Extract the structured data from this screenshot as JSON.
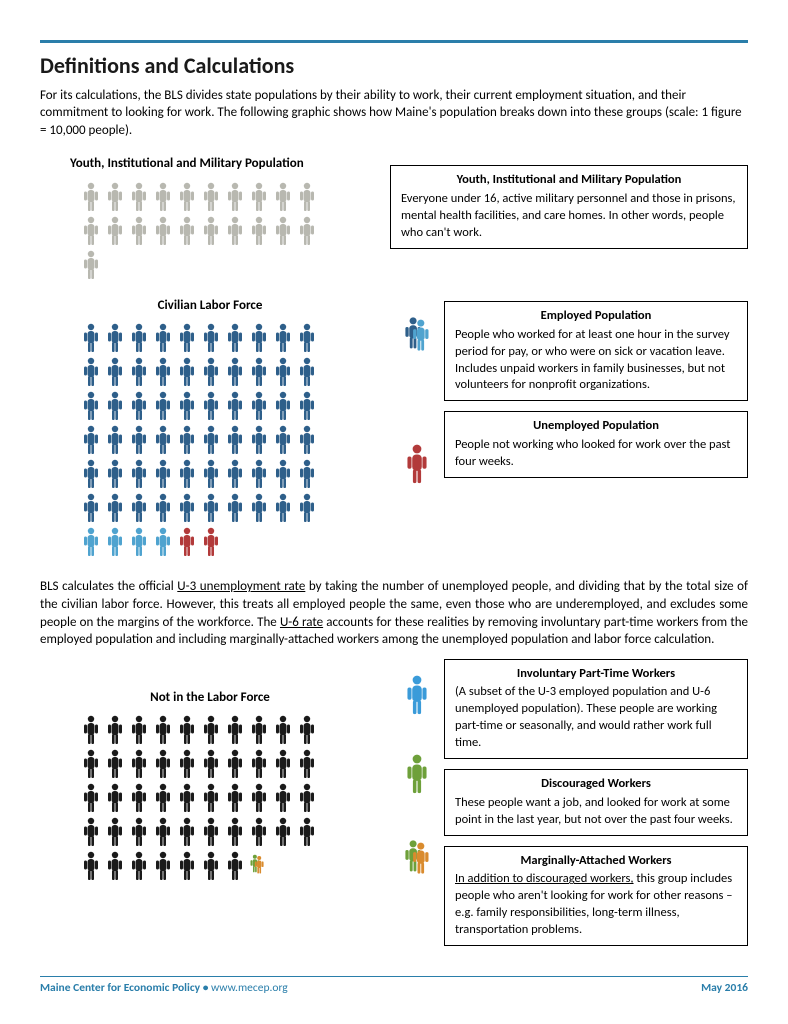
{
  "heading": "Definitions and Calculations",
  "intro": "For its calculations, the BLS divides state populations by their ability to work, their current employment situation, and their commitment to looking for work. The following graphic shows how Maine's population breaks down into these groups (scale: 1 figure = 10,000 people).",
  "colors": {
    "rule": "#2a7eaa",
    "gray": "#b8b8b0",
    "darkblue": "#2e5f8a",
    "lightblue": "#4fa3cf",
    "red": "#b23a3a",
    "brightblue": "#3a9bd9",
    "green": "#6ea03a",
    "orange": "#d98b2e",
    "black": "#1a1a1a",
    "footer": "#2a7eaa"
  },
  "section1": {
    "title": "Youth, Institutional and Military Population",
    "rows": [
      [
        "gray",
        "gray",
        "gray",
        "gray",
        "gray",
        "gray",
        "gray",
        "gray",
        "gray",
        "gray"
      ],
      [
        "gray",
        "gray",
        "gray",
        "gray",
        "gray",
        "gray",
        "gray",
        "gray",
        "gray",
        "gray"
      ],
      [
        "gray"
      ]
    ],
    "box": {
      "title": "Youth, Institutional and Military Population",
      "body": "Everyone under 16, active military personnel and those in prisons, mental health facilities, and care homes. In other words, people who can't work."
    }
  },
  "section2": {
    "title": "Civilian Labor Force",
    "rows": [
      [
        "darkblue",
        "darkblue",
        "darkblue",
        "darkblue",
        "darkblue",
        "darkblue",
        "darkblue",
        "darkblue",
        "darkblue",
        "darkblue"
      ],
      [
        "darkblue",
        "darkblue",
        "darkblue",
        "darkblue",
        "darkblue",
        "darkblue",
        "darkblue",
        "darkblue",
        "darkblue",
        "darkblue"
      ],
      [
        "darkblue",
        "darkblue",
        "darkblue",
        "darkblue",
        "darkblue",
        "darkblue",
        "darkblue",
        "darkblue",
        "darkblue",
        "darkblue"
      ],
      [
        "darkblue",
        "darkblue",
        "darkblue",
        "darkblue",
        "darkblue",
        "darkblue",
        "darkblue",
        "darkblue",
        "darkblue",
        "darkblue"
      ],
      [
        "darkblue",
        "darkblue",
        "darkblue",
        "darkblue",
        "darkblue",
        "darkblue",
        "darkblue",
        "darkblue",
        "darkblue",
        "darkblue"
      ],
      [
        "darkblue",
        "darkblue",
        "darkblue",
        "darkblue",
        "darkblue",
        "darkblue",
        "darkblue",
        "darkblue",
        "darkblue",
        "darkblue"
      ],
      [
        "lightblue",
        "lightblue",
        "lightblue",
        "lightblue",
        "red",
        "red"
      ]
    ],
    "box_employed": {
      "title": "Employed Population",
      "body": "People who worked for at least one hour in the survey period for pay, or who were on sick or vacation leave. Includes unpaid workers in family businesses, but not volunteers for nonprofit organizations.",
      "icon_colors": [
        "darkblue",
        "lightblue"
      ]
    },
    "box_unemployed": {
      "title": "Unemployed Population",
      "body": "People not working who looked for work over the past four weeks.",
      "icon_colors": [
        "red"
      ]
    }
  },
  "mid": {
    "p1a": "BLS calculates the official ",
    "u3": "U-3 unemployment rate",
    "p1b": " by taking the number of unemployed people, and dividing that by the total size of the civilian labor force. However, this treats all employed people the same, even those who are underemployed, and excludes some people on the margins of the workforce. The ",
    "u6": "U-6 rate",
    "p1c": " accounts for these realities by removing involuntary part-time workers from the employed population and including marginally-attached workers among the unemployed population and labor force calculation."
  },
  "section3": {
    "title": "Not in the Labor Force",
    "rows": [
      [
        "black",
        "black",
        "black",
        "black",
        "black",
        "black",
        "black",
        "black",
        "black",
        "black"
      ],
      [
        "black",
        "black",
        "black",
        "black",
        "black",
        "black",
        "black",
        "black",
        "black",
        "black"
      ],
      [
        "black",
        "black",
        "black",
        "black",
        "black",
        "black",
        "black",
        "black",
        "black",
        "black"
      ],
      [
        "black",
        "black",
        "black",
        "black",
        "black",
        "black",
        "black",
        "black",
        "black",
        "black"
      ],
      [
        "black",
        "black",
        "black",
        "black",
        "black",
        "black",
        "black",
        "green_orange_small"
      ]
    ],
    "box_ipt": {
      "title": "Involuntary Part-Time Workers",
      "body": "(A subset of the U-3 employed population and U-6 unemployed population). These people are working part-time or seasonally, and would rather work full time.",
      "icon_colors": [
        "brightblue"
      ]
    },
    "box_disc": {
      "title": "Discouraged Workers",
      "body": "These people want a job, and looked for work at some point in the last year, but not over the past four weeks.",
      "icon_colors": [
        "green"
      ]
    },
    "box_marg": {
      "title": "Marginally-Attached Workers",
      "body_u": "In addition to discouraged workers,",
      "body": " this group includes people who aren't looking for work for other reasons – e.g. family responsibilities, long-term illness, transportation problems.",
      "icon_colors": [
        "green",
        "orange"
      ]
    }
  },
  "footer": {
    "org": "Maine Center for Economic Policy",
    "sep": "  •  ",
    "site": "www.mecep.org",
    "date": "May 2016"
  }
}
